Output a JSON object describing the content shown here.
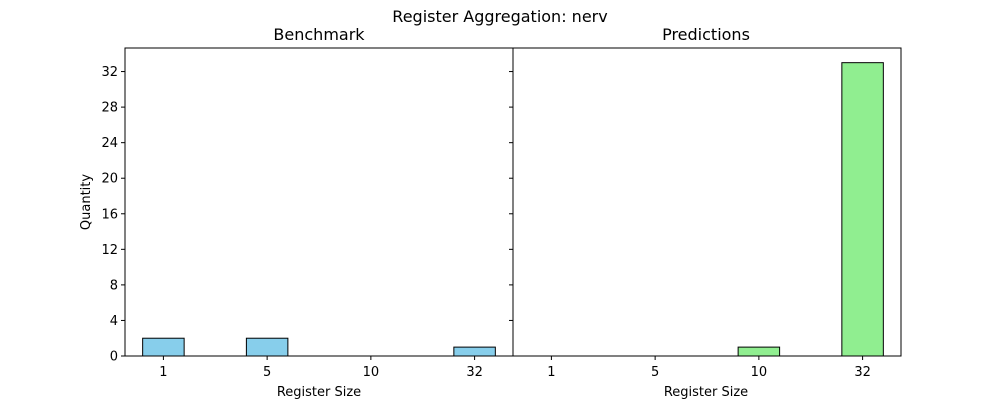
{
  "figure": {
    "suptitle": "Register Aggregation: nerv"
  },
  "chart_data": [
    {
      "type": "bar",
      "title": "Benchmark",
      "categories": [
        "1",
        "5",
        "10",
        "32"
      ],
      "values": [
        2,
        2,
        0,
        1
      ],
      "xlabel": "Register Size",
      "ylabel": "Quantity",
      "ylim": [
        0,
        34.65
      ],
      "yticks": [
        0,
        4,
        8,
        12,
        16,
        20,
        24,
        28,
        32
      ],
      "bar_color": "#87ceeb",
      "edge_color": "#000000",
      "grid": false
    },
    {
      "type": "bar",
      "title": "Predictions",
      "categories": [
        "1",
        "5",
        "10",
        "32"
      ],
      "values": [
        0,
        0,
        1,
        33
      ],
      "xlabel": "Register Size",
      "ylabel": "",
      "ylim": [
        0,
        34.65
      ],
      "yticks": [
        0,
        4,
        8,
        12,
        16,
        20,
        24,
        28,
        32
      ],
      "bar_color": "#90ee90",
      "edge_color": "#000000",
      "grid": false
    }
  ]
}
